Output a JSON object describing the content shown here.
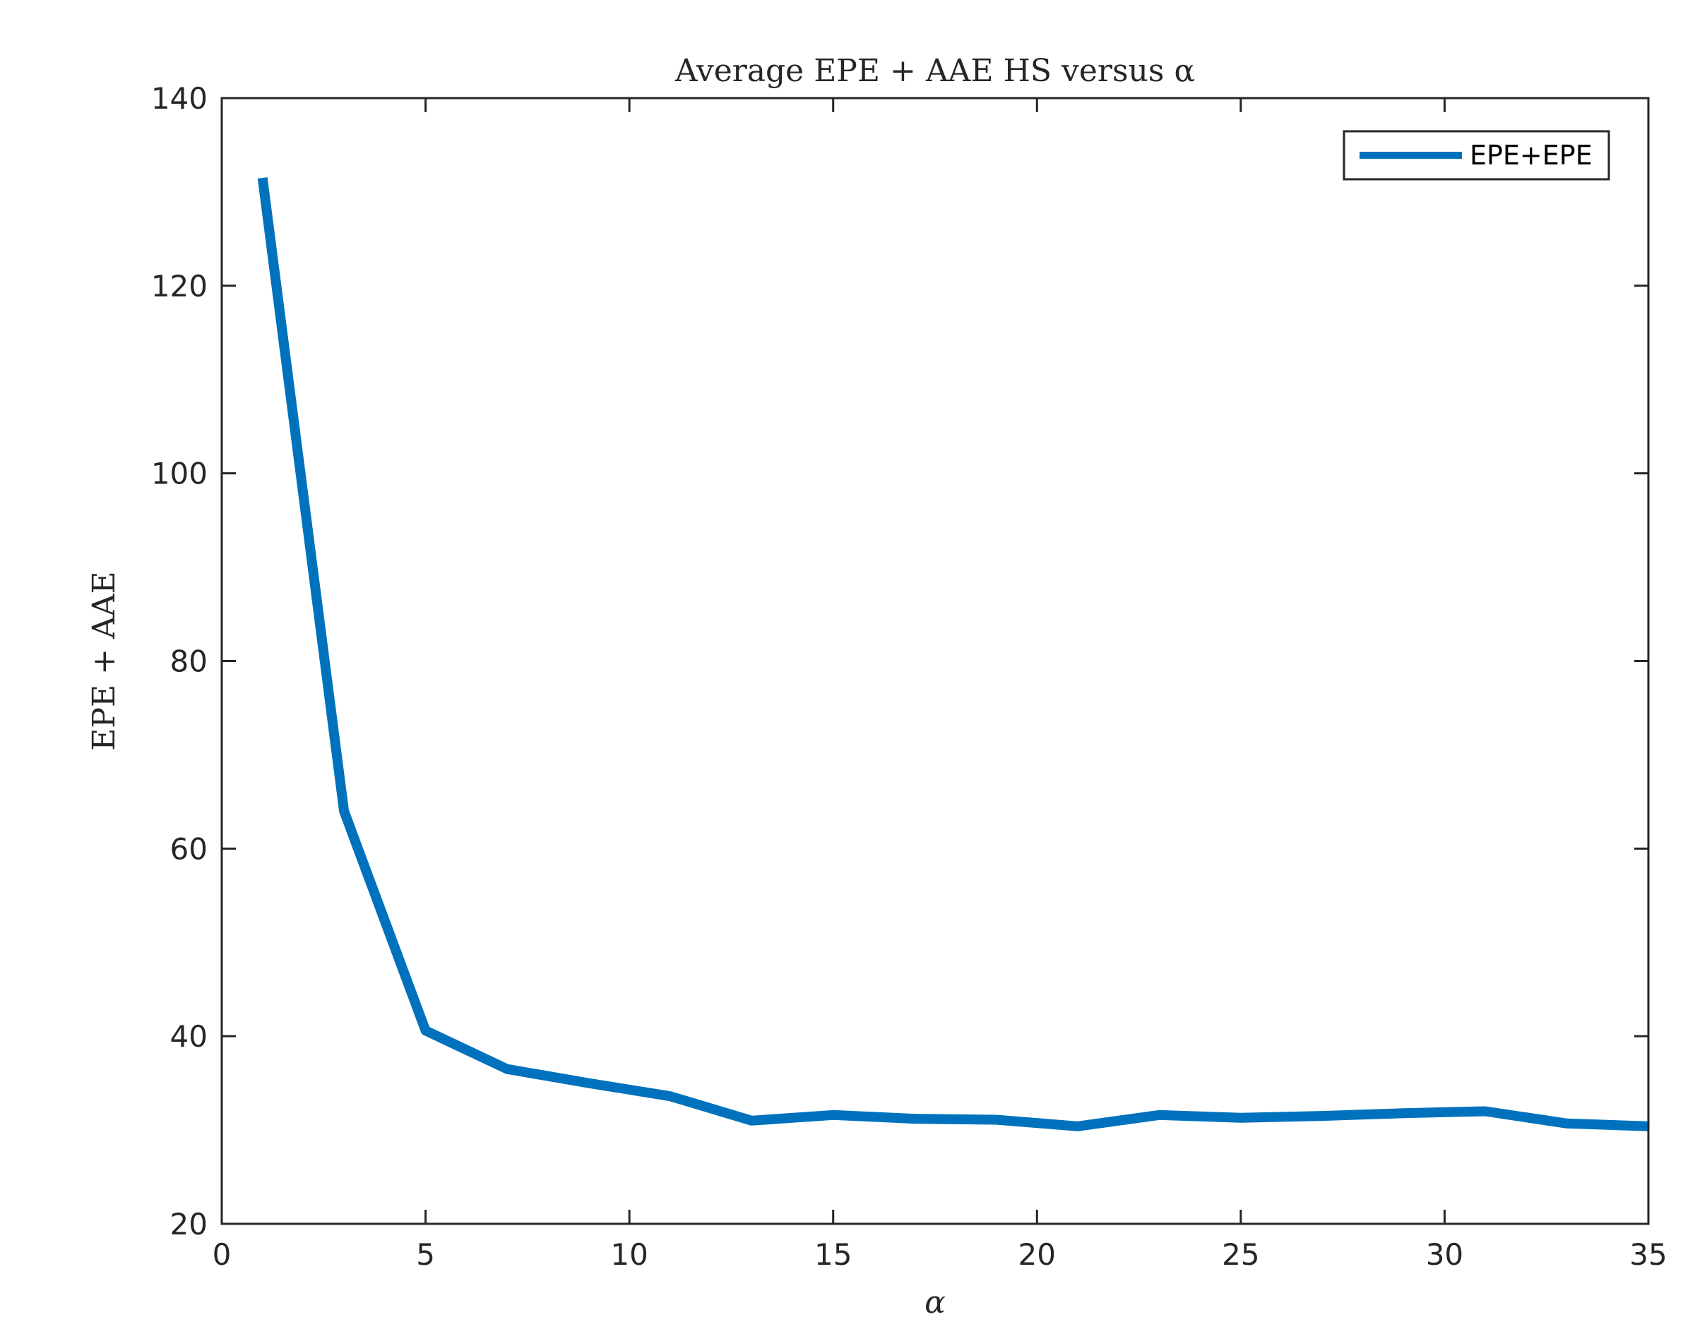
{
  "chart_data": {
    "type": "line",
    "title": "Average EPE + AAE HS versus α",
    "xlabel": "α",
    "ylabel": "EPE + AAE",
    "xlim": [
      0,
      35
    ],
    "ylim": [
      20,
      140
    ],
    "xticks": [
      0,
      5,
      10,
      15,
      20,
      25,
      30,
      35
    ],
    "yticks": [
      20,
      40,
      60,
      80,
      100,
      120,
      140
    ],
    "grid": false,
    "legend_position": "top-right",
    "series": [
      {
        "name": "EPE+EPE",
        "color": "#0072BD",
        "x": [
          1,
          3,
          5,
          7,
          9,
          11,
          13,
          15,
          17,
          19,
          21,
          23,
          25,
          27,
          29,
          31,
          33,
          35
        ],
        "y": [
          131.5,
          64,
          40.6,
          36.5,
          35,
          33.6,
          31,
          31.6,
          31.2,
          31.1,
          30.4,
          31.6,
          31.3,
          31.5,
          31.8,
          32,
          30.7,
          30.4
        ]
      }
    ]
  }
}
